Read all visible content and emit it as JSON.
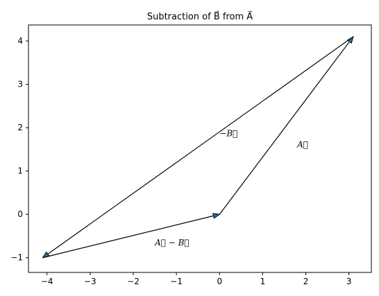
{
  "chart_data": {
    "type": "line",
    "title": "Subtraction of B⃗ from A⃗",
    "xlabel": "",
    "ylabel": "",
    "xlim": [
      -4.43,
      3.52
    ],
    "ylim": [
      -1.34,
      4.37
    ],
    "xticks": [
      -4,
      -3,
      -2,
      -1,
      0,
      1,
      2,
      3
    ],
    "yticks": [
      -1,
      0,
      1,
      2,
      3,
      4
    ],
    "grid": false,
    "arrow_color": "#1f77b4",
    "line_color": "#000000",
    "vectors": [
      {
        "id": "A",
        "from": [
          0,
          0
        ],
        "to": [
          3.1,
          4.1
        ]
      },
      {
        "id": "negB",
        "from": [
          3.1,
          4.1
        ],
        "to": [
          -4.1,
          -1.0
        ]
      },
      {
        "id": "AminusB",
        "from": [
          -4.1,
          -1.0
        ],
        "to": [
          0,
          0
        ]
      }
    ],
    "annotations": [
      {
        "text": "A⃗",
        "x": 1.8,
        "y": 1.55
      },
      {
        "text": "−B⃗",
        "x": 0.0,
        "y": 1.8
      },
      {
        "text": "A⃗ − B⃗",
        "x": -1.5,
        "y": -0.72
      }
    ]
  }
}
